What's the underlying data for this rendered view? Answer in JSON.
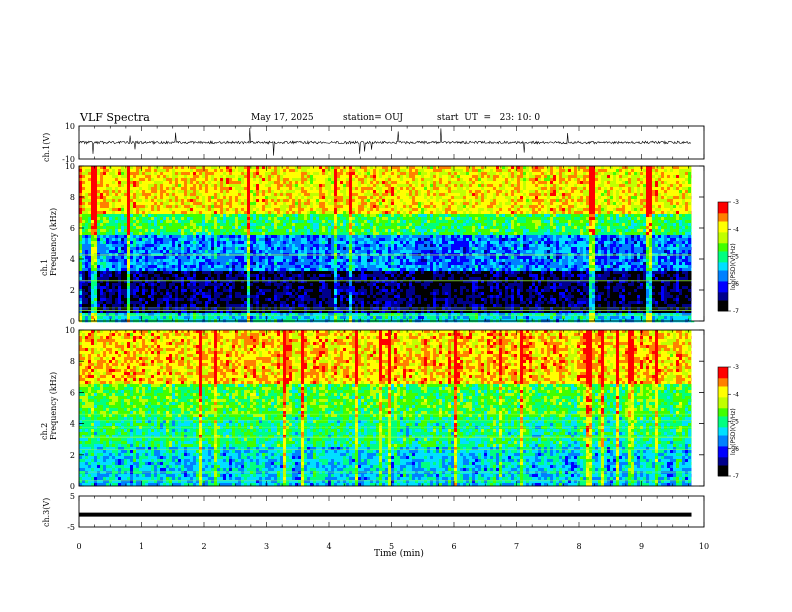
{
  "header": {
    "title": "VLF Spectra",
    "date": "May 17, 2025",
    "station": "station= OUJ",
    "start": "start  UT  =   23: 10: 0"
  },
  "colors": {
    "colormap": [
      "#000000",
      "#00008c",
      "#0000ff",
      "#0080ff",
      "#00e0ff",
      "#00ff80",
      "#40ff00",
      "#c0ff00",
      "#ffff00",
      "#ff8000",
      "#ff0000"
    ],
    "waveform": "#000000"
  },
  "chart_data": [
    {
      "type": "line",
      "panel": "ch1-waveform",
      "ylabel": "ch.1(V)",
      "ylim": [
        -10,
        10
      ],
      "yticks": [
        "10",
        "-10"
      ],
      "baseline": 0,
      "description_values": "noise waveform around 0 V with sharp impulsive spikes"
    },
    {
      "type": "heatmap",
      "panel": "ch1-spectrogram",
      "ylabel": "ch.1\nFrequency (kHz)",
      "ylim": [
        0,
        10
      ],
      "yticks": [
        "0",
        "2",
        "4",
        "6",
        "8",
        "10"
      ],
      "colorbar": {
        "label": "log(PSD)(V²/Hz)",
        "range": [
          -7,
          -3
        ],
        "ticks": [
          "-3",
          "-4",
          "-5",
          "-6",
          "-7"
        ]
      },
      "bands": [
        {
          "f_low": 0,
          "f_high": 0.6,
          "level": -5.3
        },
        {
          "f_low": 0.6,
          "f_high": 3.2,
          "level": -6.6
        },
        {
          "f_low": 3.2,
          "f_high": 5.5,
          "level": -5.7
        },
        {
          "f_low": 5.5,
          "f_high": 7.0,
          "level": -4.8
        },
        {
          "f_low": 7.0,
          "f_high": 10.0,
          "level": -3.9
        }
      ]
    },
    {
      "type": "heatmap",
      "panel": "ch2-spectrogram",
      "ylabel": "ch.2\nFrequency (kHz)",
      "ylim": [
        0,
        10
      ],
      "yticks": [
        "0",
        "2",
        "4",
        "6",
        "8",
        "10"
      ],
      "colorbar": {
        "label": "log(PSD)(V²/Hz)",
        "range": [
          -7,
          -3
        ],
        "ticks": [
          "-3",
          "-4",
          "-5",
          "-6",
          "-7"
        ]
      },
      "bands": [
        {
          "f_low": 0,
          "f_high": 2.5,
          "level": -5.4
        },
        {
          "f_low": 2.5,
          "f_high": 4.5,
          "level": -5.0
        },
        {
          "f_low": 4.5,
          "f_high": 6.5,
          "level": -4.7
        },
        {
          "f_low": 6.5,
          "f_high": 10.0,
          "level": -3.8
        }
      ]
    },
    {
      "type": "line",
      "panel": "ch3-waveform",
      "ylabel": "ch.3(V)",
      "ylim": [
        -5,
        5
      ],
      "yticks": [
        "5",
        "-5"
      ],
      "constant": -1
    }
  ],
  "xaxis": {
    "label": "Time (min)",
    "xlim": [
      0,
      10
    ],
    "ticks": [
      "0",
      "1",
      "2",
      "3",
      "4",
      "5",
      "6",
      "7",
      "8",
      "9",
      "10"
    ],
    "data_end": 9.8
  }
}
